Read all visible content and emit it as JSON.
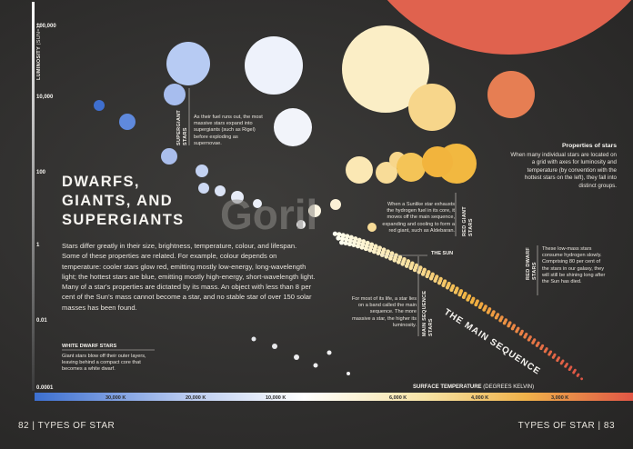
{
  "title": [
    "DWARFS,",
    "GIANTS, AND",
    "SUPERGIANTS"
  ],
  "intro": "Stars differ greatly in their size, brightness, temperature, colour, and lifespan. Some of these properties are related. For example, colour depends on temperature: cooler stars glow red, emitting mostly low-energy, long-wavelength light; the hottest stars are blue, emitting mostly high-energy, short-wavelength light. Many of a star's properties are dictated by its mass. An object with less than 8 per cent of the Sun's mass cannot become a star, and no stable star of over 150 solar masses has been found.",
  "axes": {
    "luminosity_label": "LUMINOSITY",
    "luminosity_unit": "(SUN=1)",
    "ticks": [
      "100,000",
      "10,000",
      "100",
      "1",
      "0.01",
      "0.0001"
    ],
    "temperature_label": "SURFACE TEMPERATURE",
    "temperature_unit": "(DEGREES KELVIN)",
    "temps": [
      "30,000 K",
      "20,000 K",
      "10,000 K",
      "6,000 K",
      "4,000 K",
      "3,000 K"
    ]
  },
  "white_dwarf": {
    "heading": "WHITE DWARF STARS",
    "text": "Giant stars blow off their outer layers, leaving behind a compact core that becomes a white dwarf."
  },
  "supergiants": {
    "label": [
      "SUPERGIANT",
      "STARS"
    ],
    "text": "As their fuel runs out, the most massive stars expand into supergiants (such as Rigel) before exploding as supernovae."
  },
  "red_giants": {
    "label": [
      "RED GIANT",
      "STARS"
    ],
    "text": "When a Sunlike star exhausts the hydrogen fuel in its core, it moves off the main sequence, expanding and cooling to form a red giant, such as Aldebaran."
  },
  "sun_label": "THE SUN",
  "main_sequence": {
    "title": "THE MAIN SEQUENCE",
    "text": "For most of its life, a star lies on a band called the main sequence. The more massive a star, the higher its luminosity.",
    "label": [
      "MAIN SEQUENCE",
      "STARS"
    ]
  },
  "red_dwarfs": {
    "label": [
      "RED DWARF",
      "STARS"
    ],
    "text": "These low-mass stars consume hydrogen slowly. Comprising 80 per cent of the stars in our galaxy, they will still be shining long after the Sun has died."
  },
  "properties": {
    "heading": "Properties of stars",
    "text": "When many individual stars are located on a grid with axes for luminosity and temperature (by convention with the hottest stars on the left), they fall into distinct groups."
  },
  "footer": {
    "left": "82 | TYPES OF STAR",
    "right": "TYPES OF STAR | 83"
  },
  "colors": {
    "background": "#2f2f2e",
    "hot_star": "#3f6fcf",
    "sun_like": "#f4c457",
    "cool_star": "#e0624e"
  }
}
